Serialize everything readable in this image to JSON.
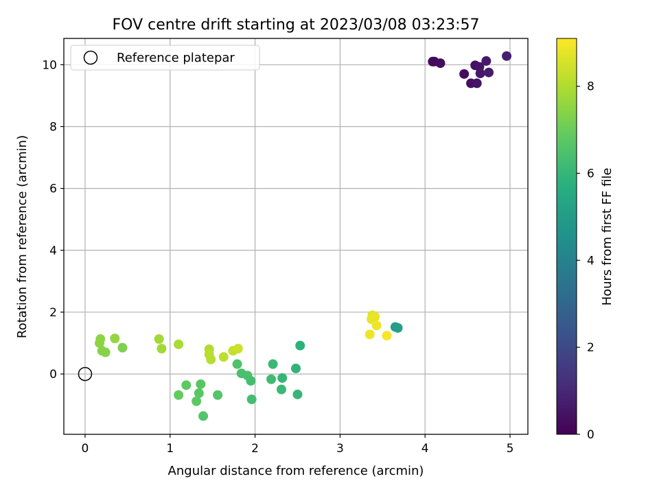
{
  "chart_data": {
    "type": "scatter",
    "title": "FOV centre drift starting at 2023/03/08 03:23:57",
    "xlabel": "Angular distance from reference (arcmin)",
    "ylabel": "Rotation from reference (arcmin)",
    "xlim": [
      -0.25,
      5.21
    ],
    "ylim": [
      -1.95,
      10.85
    ],
    "x_ticks": [
      0,
      1,
      2,
      3,
      4,
      5
    ],
    "y_ticks": [
      0,
      2,
      4,
      6,
      8,
      10
    ],
    "grid": true,
    "legend": {
      "placement": "top-left",
      "entries": [
        "Reference platepar"
      ]
    },
    "reference": {
      "label": "Reference platepar",
      "x": 0,
      "y": 0,
      "marker": "hollow-circle"
    },
    "colorbar": {
      "label": "Hours from first FF file",
      "colormap": "viridis",
      "range": [
        0,
        9.1
      ],
      "ticks": [
        0,
        2,
        4,
        6,
        8
      ]
    },
    "series": [
      {
        "color_by": "hours",
        "points": [
          {
            "x": 4.09,
            "y": 10.1,
            "hours": 0.1
          },
          {
            "x": 4.11,
            "y": 10.1,
            "hours": 0.2
          },
          {
            "x": 4.18,
            "y": 10.05,
            "hours": 0.3
          },
          {
            "x": 4.46,
            "y": 9.7,
            "hours": 0.3
          },
          {
            "x": 4.54,
            "y": 9.4,
            "hours": 0.4
          },
          {
            "x": 4.59,
            "y": 9.98,
            "hours": 0.4
          },
          {
            "x": 4.61,
            "y": 9.4,
            "hours": 0.5
          },
          {
            "x": 4.64,
            "y": 9.93,
            "hours": 0.5
          },
          {
            "x": 4.65,
            "y": 9.72,
            "hours": 0.6
          },
          {
            "x": 4.72,
            "y": 10.12,
            "hours": 0.6
          },
          {
            "x": 4.75,
            "y": 9.75,
            "hours": 0.7
          },
          {
            "x": 4.96,
            "y": 10.28,
            "hours": 0.8
          },
          {
            "x": 3.65,
            "y": 1.52,
            "hours": 5.0
          },
          {
            "x": 3.68,
            "y": 1.49,
            "hours": 5.1
          },
          {
            "x": 2.53,
            "y": 0.92,
            "hours": 5.8
          },
          {
            "x": 2.48,
            "y": 0.18,
            "hours": 5.9
          },
          {
            "x": 2.5,
            "y": -0.66,
            "hours": 6.0
          },
          {
            "x": 2.32,
            "y": -0.13,
            "hours": 6.0
          },
          {
            "x": 2.31,
            "y": -0.5,
            "hours": 6.1
          },
          {
            "x": 2.21,
            "y": 0.32,
            "hours": 6.1
          },
          {
            "x": 2.19,
            "y": -0.17,
            "hours": 6.2
          },
          {
            "x": 1.96,
            "y": -0.82,
            "hours": 6.3
          },
          {
            "x": 1.95,
            "y": -0.22,
            "hours": 6.3
          },
          {
            "x": 1.91,
            "y": -0.05,
            "hours": 6.4
          },
          {
            "x": 1.84,
            "y": 0.02,
            "hours": 6.4
          },
          {
            "x": 1.79,
            "y": 0.32,
            "hours": 6.5
          },
          {
            "x": 1.56,
            "y": -0.68,
            "hours": 6.6
          },
          {
            "x": 1.39,
            "y": -1.36,
            "hours": 6.6
          },
          {
            "x": 1.36,
            "y": -0.33,
            "hours": 6.7
          },
          {
            "x": 1.34,
            "y": -0.62,
            "hours": 6.7
          },
          {
            "x": 1.31,
            "y": -0.88,
            "hours": 6.8
          },
          {
            "x": 1.19,
            "y": -0.36,
            "hours": 6.8
          },
          {
            "x": 1.1,
            "y": -0.68,
            "hours": 6.9
          },
          {
            "x": 0.44,
            "y": 0.85,
            "hours": 7.3
          },
          {
            "x": 0.24,
            "y": 0.7,
            "hours": 7.4
          },
          {
            "x": 0.2,
            "y": 0.75,
            "hours": 7.4
          },
          {
            "x": 0.17,
            "y": 1.0,
            "hours": 7.5
          },
          {
            "x": 0.18,
            "y": 1.13,
            "hours": 7.5
          },
          {
            "x": 0.35,
            "y": 1.15,
            "hours": 7.6
          },
          {
            "x": 0.87,
            "y": 1.13,
            "hours": 7.8
          },
          {
            "x": 0.9,
            "y": 0.82,
            "hours": 7.8
          },
          {
            "x": 1.1,
            "y": 0.96,
            "hours": 7.9
          },
          {
            "x": 1.46,
            "y": 0.8,
            "hours": 8.0
          },
          {
            "x": 1.46,
            "y": 0.63,
            "hours": 8.1
          },
          {
            "x": 1.48,
            "y": 0.47,
            "hours": 8.1
          },
          {
            "x": 1.63,
            "y": 0.55,
            "hours": 8.2
          },
          {
            "x": 1.74,
            "y": 0.75,
            "hours": 8.3
          },
          {
            "x": 1.8,
            "y": 0.82,
            "hours": 8.4
          },
          {
            "x": 3.38,
            "y": 1.9,
            "hours": 8.7
          },
          {
            "x": 3.41,
            "y": 1.85,
            "hours": 8.8
          },
          {
            "x": 3.37,
            "y": 1.77,
            "hours": 8.8
          },
          {
            "x": 3.43,
            "y": 1.57,
            "hours": 8.9
          },
          {
            "x": 3.35,
            "y": 1.28,
            "hours": 8.9
          },
          {
            "x": 3.55,
            "y": 1.24,
            "hours": 9.0
          }
        ]
      }
    ]
  }
}
